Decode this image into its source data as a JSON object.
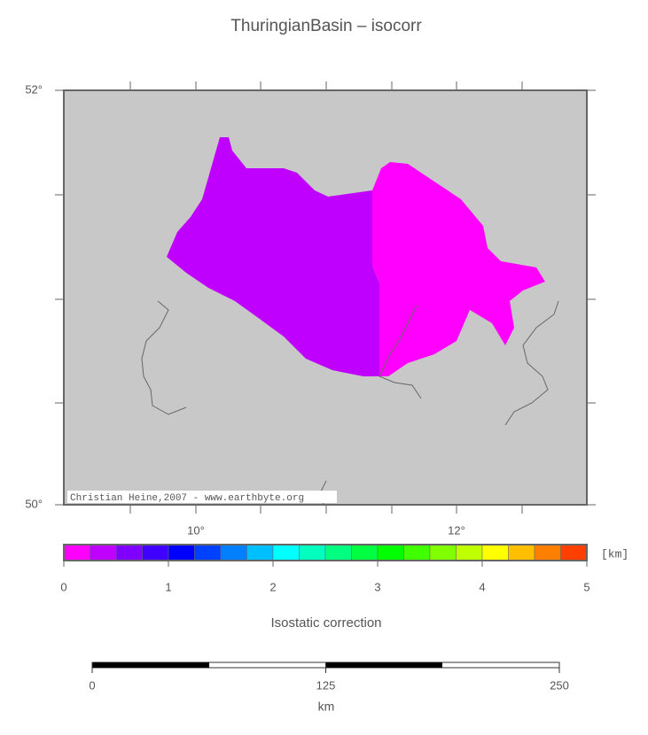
{
  "title": "ThuringianBasin – isocorr",
  "map": {
    "lat_labels": [
      "52°",
      "50°"
    ],
    "lon_labels": [
      "10°",
      "12°"
    ],
    "credit": "Christian Heine,2007 - www.earthbyte.org"
  },
  "colorbar": {
    "ticks": [
      0,
      1,
      2,
      3,
      4,
      5
    ],
    "unit": "[km]",
    "label": "Isostatic correction",
    "colors": [
      "#ff00ff",
      "#bf00ff",
      "#8000ff",
      "#4000ff",
      "#0000ff",
      "#0040ff",
      "#0080ff",
      "#00bfff",
      "#00ffff",
      "#00ffbf",
      "#00ff80",
      "#00ff40",
      "#00ff00",
      "#40ff00",
      "#80ff00",
      "#bfff00",
      "#ffff00",
      "#ffbf00",
      "#ff8000",
      "#ff4000"
    ]
  },
  "scalebar": {
    "ticks": [
      0,
      125,
      250
    ],
    "unit": "km"
  }
}
